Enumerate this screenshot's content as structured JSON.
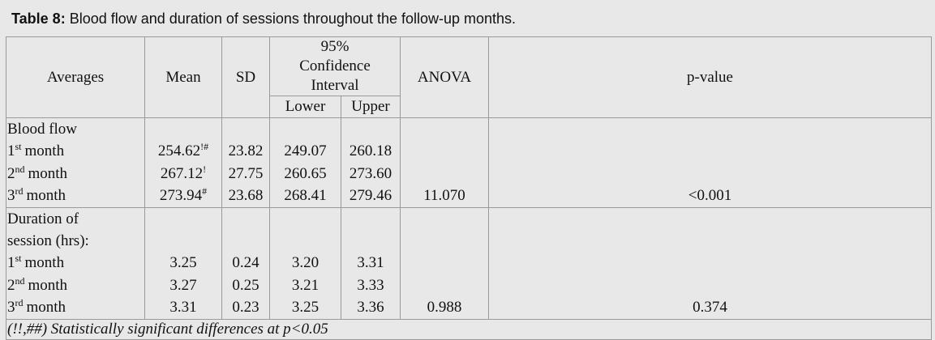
{
  "title": {
    "label": "Table 8:",
    "text": "Blood flow and duration of sessions throughout the follow-up months."
  },
  "header": {
    "averages": "Averages",
    "mean": "Mean",
    "sd": "SD",
    "ci": "95% Confidence Interval",
    "lower": "Lower",
    "upper": "Upper",
    "anova": "ANOVA",
    "p": "p-value"
  },
  "groups": [
    {
      "label": [
        "Blood flow"
      ],
      "rows": [
        {
          "ord": "1",
          "ord_sup": "st",
          "month": "month",
          "mean": "254.62",
          "mean_sup": "!#",
          "sd": "23.82",
          "lower": "249.07",
          "upper": "260.18"
        },
        {
          "ord": "2",
          "ord_sup": "nd",
          "month": "month",
          "mean": "267.12",
          "mean_sup": "!",
          "sd": "27.75",
          "lower": "260.65",
          "upper": "273.60"
        },
        {
          "ord": "3",
          "ord_sup": "rd",
          "month": "month",
          "mean": "273.94",
          "mean_sup": "#",
          "sd": "23.68",
          "lower": "268.41",
          "upper": "279.46"
        }
      ],
      "anova": "11.070",
      "p": "<0.001"
    },
    {
      "label": [
        "Duration of",
        "session (hrs):"
      ],
      "rows": [
        {
          "ord": "1",
          "ord_sup": "st",
          "month": "month",
          "mean": "3.25",
          "sd": "0.24",
          "lower": "3.20",
          "upper": "3.31"
        },
        {
          "ord": "2",
          "ord_sup": "nd",
          "month": "month",
          "mean": "3.27",
          "sd": "0.25",
          "lower": "3.21",
          "upper": "3.33"
        },
        {
          "ord": "3",
          "ord_sup": "rd",
          "month": "month",
          "mean": "3.31",
          "sd": "0.23",
          "lower": "3.25",
          "upper": "3.36"
        }
      ],
      "anova": "0.988",
      "p": "0.374"
    }
  ],
  "footnote": "(!!,##) Statistically significant differences at p<0.05"
}
